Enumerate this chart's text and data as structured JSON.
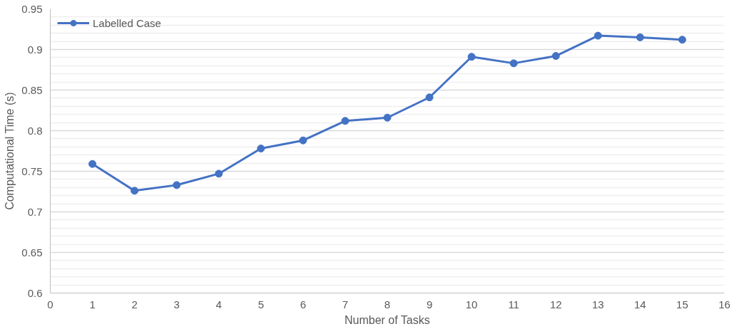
{
  "chart_data": {
    "type": "line",
    "xlabel": "Number of Tasks",
    "ylabel": "Computational Time (s)",
    "x": [
      1,
      2,
      3,
      4,
      5,
      6,
      7,
      8,
      9,
      10,
      11,
      12,
      13,
      14,
      15
    ],
    "series": [
      {
        "name": "Labelled Case",
        "color": "#4472c4",
        "values": [
          0.759,
          0.726,
          0.733,
          0.747,
          0.778,
          0.788,
          0.812,
          0.816,
          0.841,
          0.891,
          0.883,
          0.892,
          0.917,
          0.915,
          0.912
        ]
      }
    ],
    "xlim": [
      0,
      16
    ],
    "xticks": [
      0,
      1,
      2,
      3,
      4,
      5,
      6,
      7,
      8,
      9,
      10,
      11,
      12,
      13,
      14,
      15,
      16
    ],
    "ylim": [
      0.6,
      0.95
    ],
    "yticks": [
      0.6,
      0.65,
      0.7,
      0.75,
      0.8,
      0.85,
      0.9,
      0.95
    ],
    "grid": "y",
    "legend": "top left",
    "marker": "circle",
    "line_style": "solid"
  }
}
